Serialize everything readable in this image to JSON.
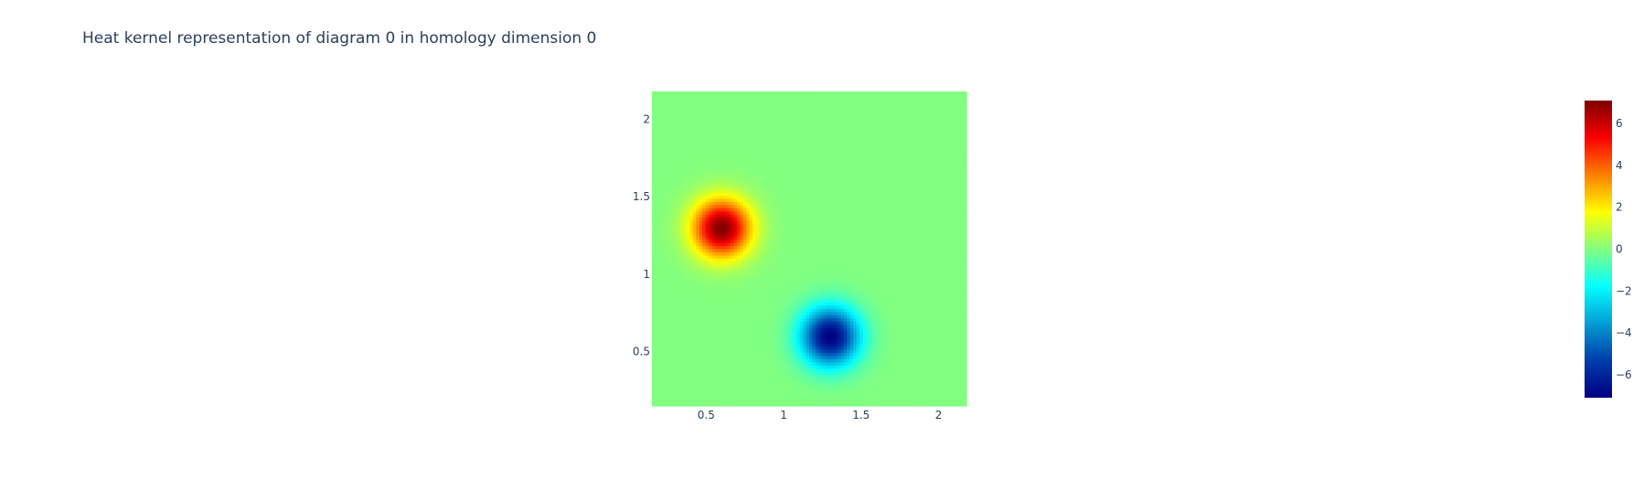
{
  "chart_data": {
    "type": "heatmap",
    "title": "Heat kernel representation of diagram 0 in homology dimension 0",
    "xlabel": "",
    "ylabel": "",
    "xlim": [
      0.15,
      2.18
    ],
    "ylim": [
      0.15,
      2.18
    ],
    "x_ticks": [
      0.5,
      1,
      1.5,
      2
    ],
    "y_ticks": [
      0.5,
      1,
      1.5,
      2
    ],
    "x_tick_labels": [
      "0.5",
      "1",
      "1.5",
      "2"
    ],
    "y_tick_labels": [
      "0.5",
      "1",
      "1.5",
      "2"
    ],
    "grid_size": 100,
    "colorscale": "Jet",
    "zmin": -7.1,
    "zmax": 7.1,
    "background_value": 0,
    "kernel_peaks": [
      {
        "x": 0.6,
        "y": 1.3,
        "value": 7.1,
        "sigma": 0.13
      },
      {
        "x": 1.3,
        "y": 0.6,
        "value": -7.1,
        "sigma": 0.13
      }
    ],
    "colorbar": {
      "ticks": [
        6,
        4,
        2,
        0,
        -2,
        -4,
        -6
      ],
      "tick_labels": [
        "6",
        "4",
        "2",
        "0",
        "−2",
        "−4",
        "−6"
      ],
      "placement": "right"
    }
  }
}
